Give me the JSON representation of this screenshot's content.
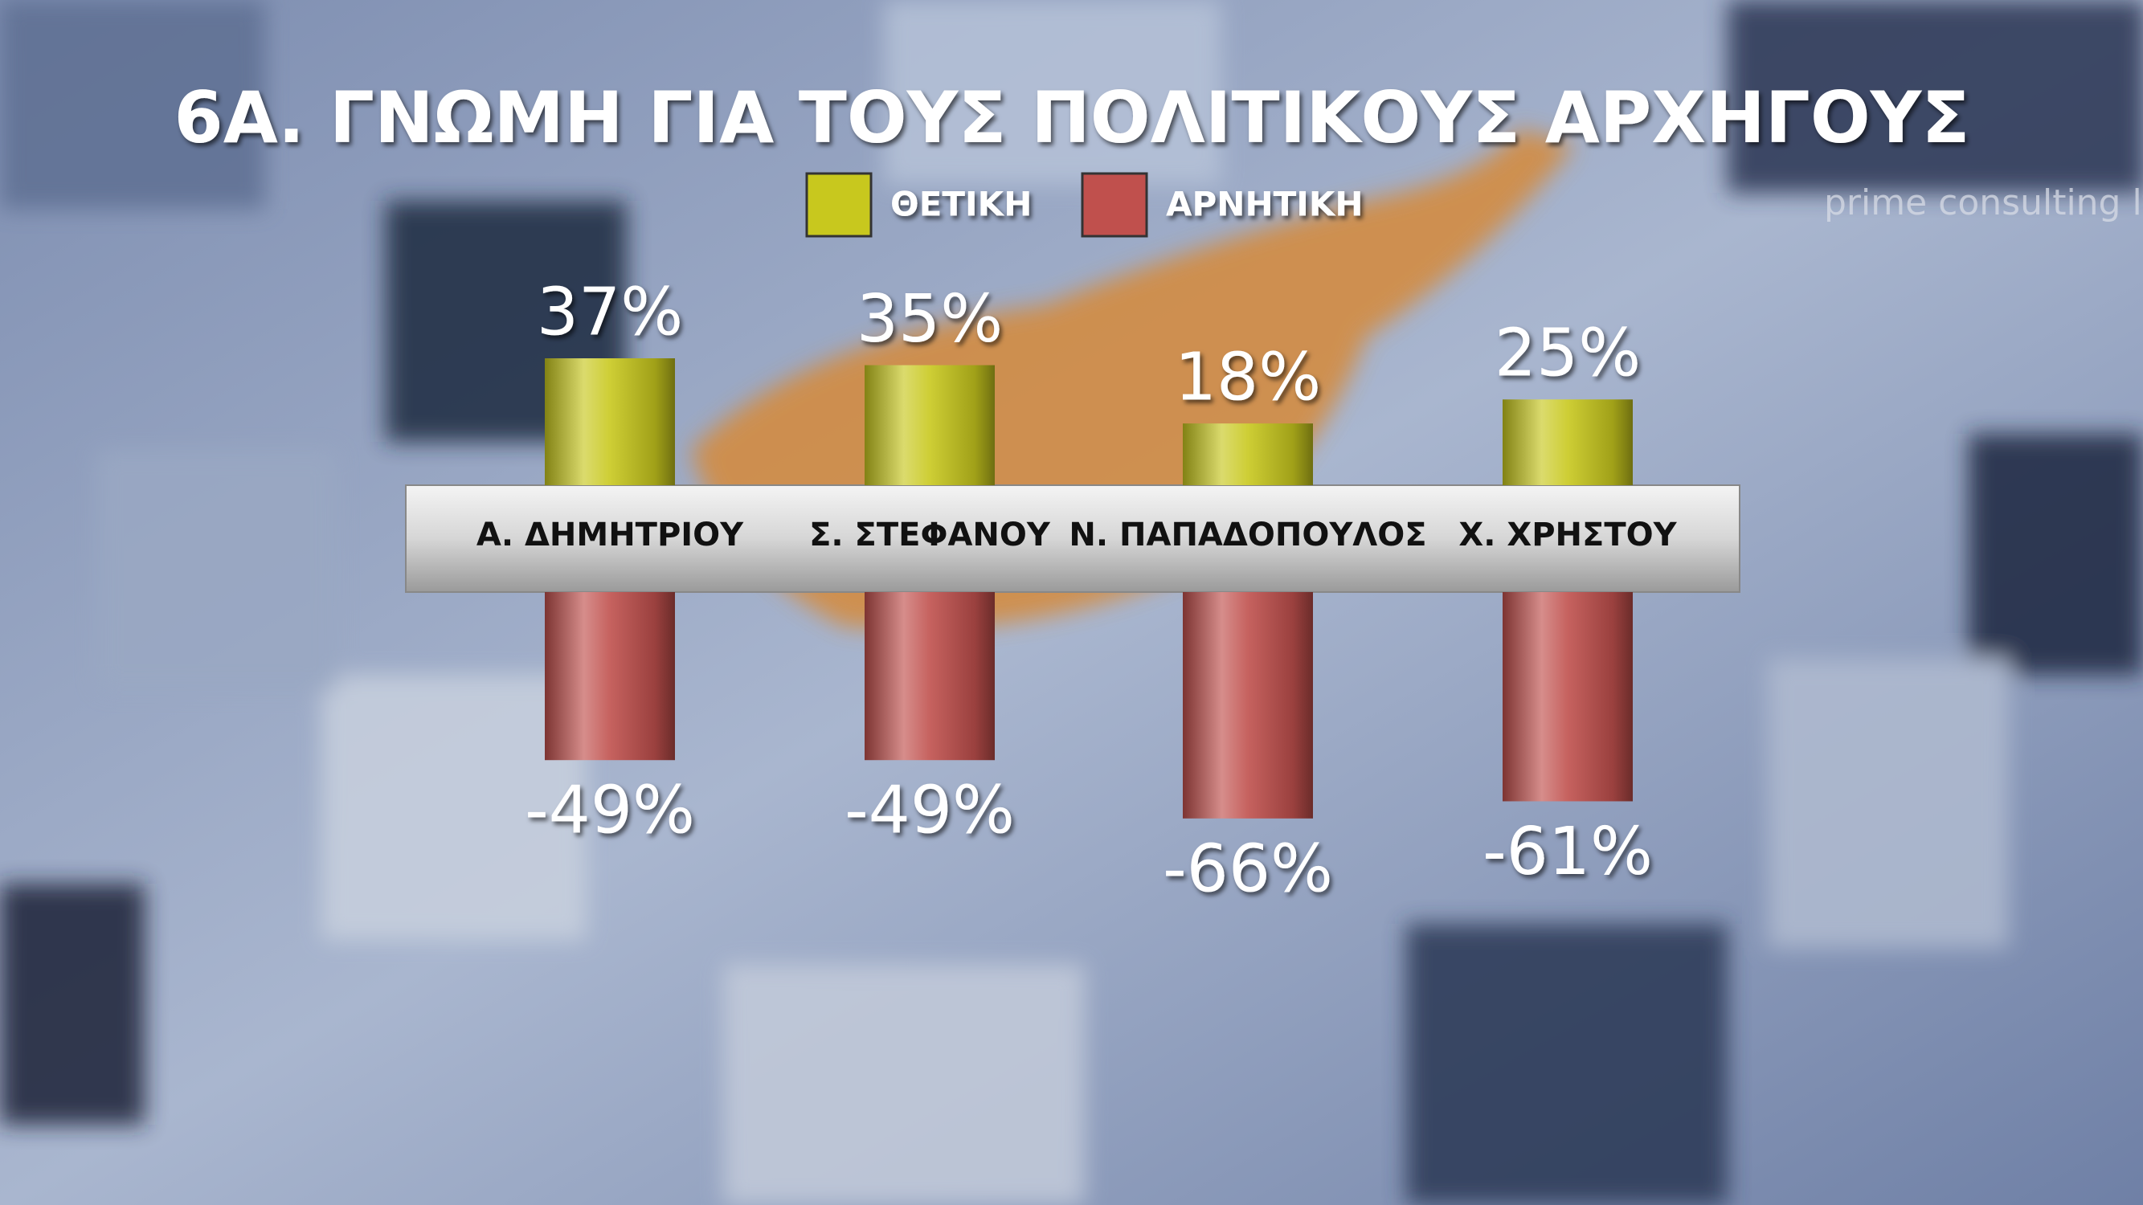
{
  "chart_data": {
    "type": "bar",
    "title": "6Α. ΓΝΩΜΗ ΓΙΑ ΤΟΥΣ ΠΟΛΙΤΙΚΟΥΣ ΑΡΧΗΓΟΥΣ",
    "categories": [
      "Α. ΔΗΜΗΤΡΙΟΥ",
      "Σ. ΣΤΕΦΑΝΟΥ",
      "Ν. ΠΑΠΑΔΟΠΟΥΛΟΣ",
      "Χ. ΧΡΗΣΤΟΥ"
    ],
    "series": [
      {
        "name": "ΘΕΤΙΚΗ",
        "color": "#c8c81e",
        "values": [
          37,
          35,
          18,
          25
        ],
        "value_labels": [
          "37%",
          "35%",
          "18%",
          "25%"
        ]
      },
      {
        "name": "ΑΡΝΗΤΙΚΗ",
        "color": "#c0504d",
        "values": [
          -49,
          -49,
          -66,
          -61
        ],
        "value_labels": [
          "-49%",
          "-49%",
          "-66%",
          "-61%"
        ]
      }
    ],
    "watermark": "prime consulting ltd"
  }
}
